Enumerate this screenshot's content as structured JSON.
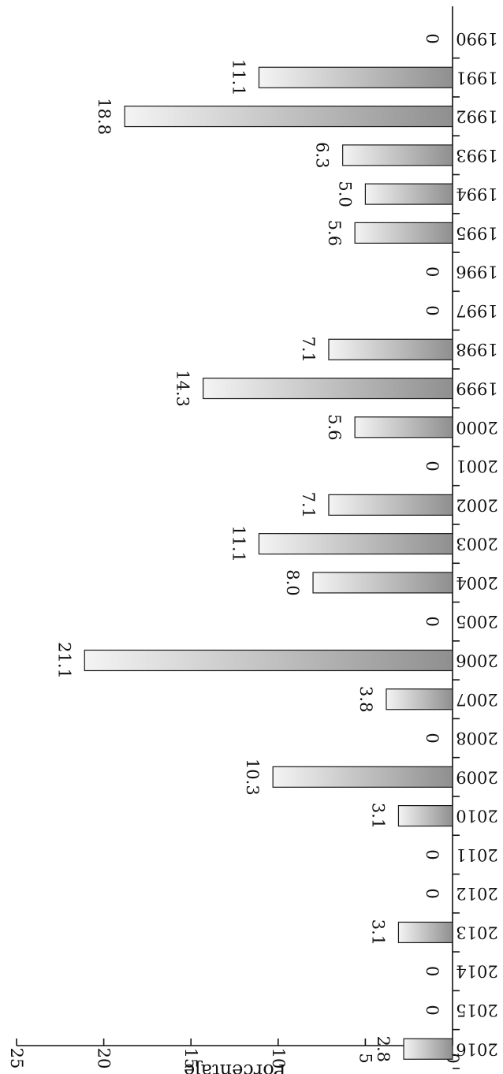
{
  "chart_data": {
    "type": "bar",
    "orientation": "horizontal",
    "ylabel": "Porcentaje",
    "ylim": [
      0,
      25
    ],
    "yticks": [
      0,
      5,
      10,
      15,
      20,
      25
    ],
    "ytick_labels": [
      "0",
      "5",
      "10",
      "15",
      "20",
      "25"
    ],
    "categories": [
      "1990",
      "1991",
      "1992",
      "1993",
      "1994",
      "1995",
      "1996",
      "1997",
      "1998",
      "1999",
      "2000",
      "2001",
      "2002",
      "2003",
      "2004",
      "2005",
      "2006",
      "2007",
      "2008",
      "2009",
      "2010",
      "2011",
      "2012",
      "2013",
      "2014",
      "2015",
      "2016"
    ],
    "values": [
      0,
      11.1,
      18.8,
      6.3,
      5.0,
      5.6,
      0,
      0,
      7.1,
      14.3,
      5.6,
      0,
      7.1,
      11.1,
      8.0,
      0,
      21.1,
      3.8,
      0,
      10.3,
      3.1,
      0,
      0,
      3.1,
      0,
      0,
      2.8
    ],
    "value_labels": [
      "0",
      "11.1",
      "18.8",
      "6.3",
      "5.0",
      "5.6",
      "0",
      "0",
      "7.1",
      "14.3",
      "5.6",
      "0",
      "7.1",
      "11.1",
      "8.0",
      "0",
      "21.1",
      "3.8",
      "0",
      "10.3",
      "3.1",
      "0",
      "0",
      "3.1",
      "0",
      "0",
      "2.8"
    ],
    "bar_gradient": [
      "#f4f4f4",
      "#8f8f8f"
    ],
    "grid": false,
    "legend": "none"
  }
}
